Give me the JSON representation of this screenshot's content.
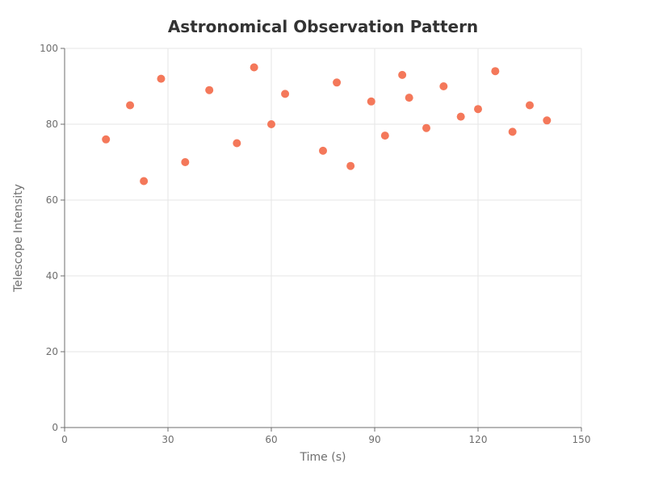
{
  "chart_data": {
    "type": "scatter",
    "title": "Astronomical Observation Pattern",
    "xlabel": "Time (s)",
    "ylabel": "Telescope Intensity",
    "xlim": [
      0,
      150
    ],
    "ylim": [
      0,
      100
    ],
    "xticks": [
      0,
      30,
      60,
      90,
      120,
      150
    ],
    "yticks": [
      0,
      20,
      40,
      60,
      80,
      100
    ],
    "grid": true,
    "marker_color": "#f4785a",
    "series": [
      {
        "points": [
          {
            "x": 12,
            "y": 76
          },
          {
            "x": 19,
            "y": 85
          },
          {
            "x": 23,
            "y": 65
          },
          {
            "x": 28,
            "y": 92
          },
          {
            "x": 35,
            "y": 70
          },
          {
            "x": 42,
            "y": 89
          },
          {
            "x": 50,
            "y": 75
          },
          {
            "x": 55,
            "y": 95
          },
          {
            "x": 60,
            "y": 80
          },
          {
            "x": 64,
            "y": 88
          },
          {
            "x": 75,
            "y": 73
          },
          {
            "x": 79,
            "y": 91
          },
          {
            "x": 83,
            "y": 69
          },
          {
            "x": 89,
            "y": 86
          },
          {
            "x": 93,
            "y": 77
          },
          {
            "x": 98,
            "y": 93
          },
          {
            "x": 100,
            "y": 87
          },
          {
            "x": 105,
            "y": 79
          },
          {
            "x": 110,
            "y": 90
          },
          {
            "x": 115,
            "y": 82
          },
          {
            "x": 120,
            "y": 84
          },
          {
            "x": 125,
            "y": 94
          },
          {
            "x": 130,
            "y": 78
          },
          {
            "x": 135,
            "y": 85
          },
          {
            "x": 140,
            "y": 81
          }
        ]
      }
    ]
  }
}
